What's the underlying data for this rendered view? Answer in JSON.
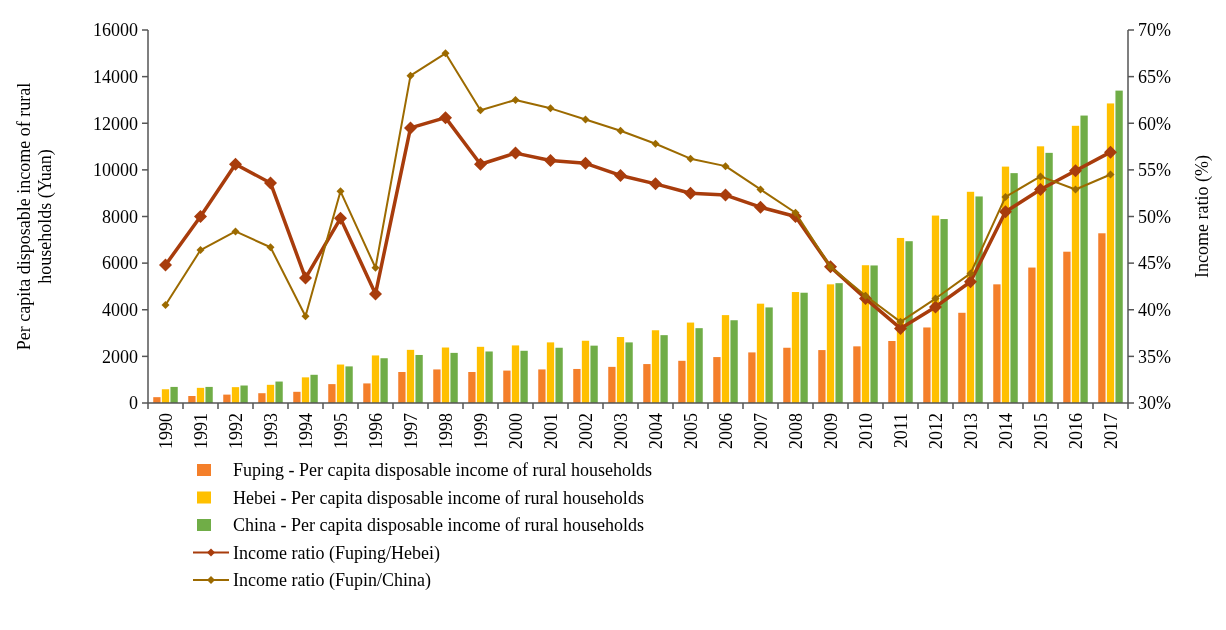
{
  "chart_data": {
    "type": "bar",
    "ylabel": "Per capita disposable income of rural households (Yuan)",
    "y2label": "Income ratio (%)",
    "categories": [
      "1990",
      "1991",
      "1992",
      "1993",
      "1994",
      "1995",
      "1996",
      "1997",
      "1998",
      "1999",
      "2000",
      "2001",
      "2002",
      "2003",
      "2004",
      "2005",
      "2006",
      "2007",
      "2008",
      "2009",
      "2010",
      "2011",
      "2012",
      "2013",
      "2014",
      "2015",
      "2016",
      "2017"
    ],
    "series": [
      {
        "name": "Fuping - Per capita disposable income of rural households",
        "color": "#f47f2a",
        "values": [
          250,
          300,
          360,
          420,
          480,
          810,
          840,
          1330,
          1440,
          1330,
          1390,
          1440,
          1460,
          1550,
          1670,
          1810,
          1970,
          2170,
          2370,
          2270,
          2430,
          2660,
          3240,
          3870,
          5090,
          5810,
          6490,
          7280
        ]
      },
      {
        "name": "Hebei - Per capita disposable income of rural households",
        "color": "#ffc000",
        "values": [
          590,
          650,
          680,
          780,
          1100,
          1650,
          2040,
          2280,
          2380,
          2410,
          2470,
          2600,
          2670,
          2830,
          3120,
          3450,
          3770,
          4260,
          4760,
          5090,
          5910,
          7080,
          8040,
          9060,
          10140,
          11010,
          11890,
          12850
        ]
      },
      {
        "name": "China - Per capita disposable income of rural households",
        "color": "#70ad47",
        "values": [
          690,
          690,
          750,
          920,
          1210,
          1570,
          1920,
          2060,
          2150,
          2210,
          2240,
          2370,
          2460,
          2600,
          2910,
          3210,
          3550,
          4100,
          4730,
          5140,
          5900,
          6940,
          7890,
          8860,
          9860,
          10730,
          12330,
          13400
        ]
      },
      {
        "name": "Income ratio (Fuping/Hebei)",
        "type": "line",
        "axis": "y2",
        "marker": "diamond",
        "color": "#a83c0c",
        "values": [
          44.8,
          50.0,
          55.6,
          53.6,
          43.4,
          49.8,
          41.7,
          59.5,
          60.6,
          55.6,
          56.8,
          56.0,
          55.7,
          54.4,
          53.5,
          52.5,
          52.3,
          51.0,
          50.0,
          44.6,
          41.2,
          38.0,
          40.3,
          43.0,
          50.5,
          52.9,
          54.9,
          56.9
        ]
      },
      {
        "name": "Income ratio (Fupin/China)",
        "type": "line",
        "axis": "y2",
        "marker": "diamond",
        "color": "#9c6a00",
        "values": [
          40.5,
          46.4,
          48.4,
          46.7,
          39.3,
          52.7,
          44.5,
          65.1,
          67.5,
          61.4,
          62.5,
          61.6,
          60.4,
          59.2,
          57.8,
          56.2,
          55.4,
          52.9,
          50.4,
          44.6,
          41.5,
          38.7,
          41.2,
          43.9,
          52.1,
          54.3,
          52.9,
          54.5
        ]
      }
    ],
    "ylim": [
      0,
      16000
    ],
    "yticks": [
      0,
      2000,
      4000,
      6000,
      8000,
      10000,
      12000,
      14000,
      16000
    ],
    "y2lim": [
      30,
      70
    ],
    "y2ticks": [
      {
        "value": 30,
        "label": "30%"
      },
      {
        "value": 35,
        "label": "35%"
      },
      {
        "value": 40,
        "label": "40%"
      },
      {
        "value": 45,
        "label": "45%"
      },
      {
        "value": 50,
        "label": "50%"
      },
      {
        "value": 55,
        "label": "55%"
      },
      {
        "value": 60,
        "label": "60%"
      },
      {
        "value": 65,
        "label": "65%"
      },
      {
        "value": 70,
        "label": "70%"
      }
    ],
    "grid": false,
    "legend": "bottom"
  }
}
